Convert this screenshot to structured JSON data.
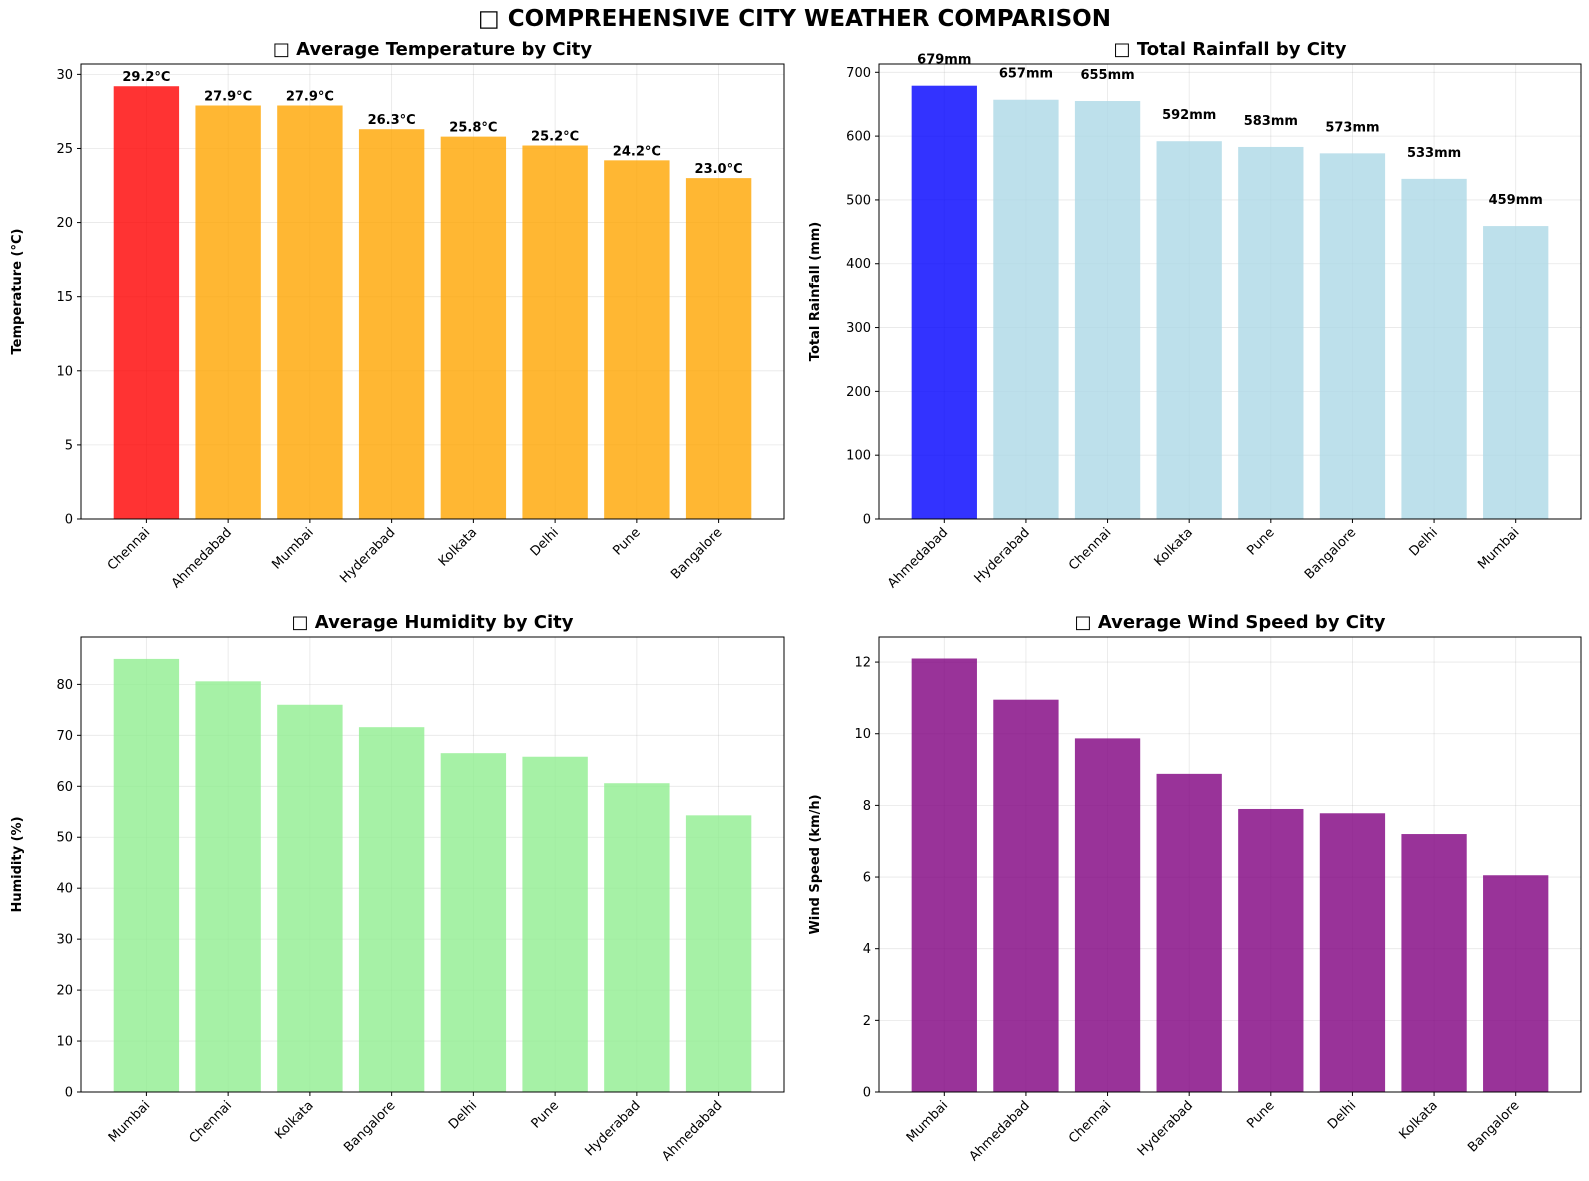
{
  "figure": {
    "title": "□ COMPREHENSIVE CITY WEATHER COMPARISON"
  },
  "chart_data": [
    {
      "type": "bar",
      "title": "□ Average Temperature by City",
      "xlabel": "",
      "ylabel": "Temperature (°C)",
      "categories": [
        "Chennai",
        "Ahmedabad",
        "Mumbai",
        "Hyderabad",
        "Kolkata",
        "Delhi",
        "Pune",
        "Bangalore"
      ],
      "values": [
        29.2,
        27.9,
        27.9,
        26.3,
        25.8,
        25.2,
        24.2,
        23.0
      ],
      "data_labels": [
        "29.2°C",
        "27.9°C",
        "27.9°C",
        "26.3°C",
        "25.8°C",
        "25.2°C",
        "24.2°C",
        "23.0°C"
      ],
      "colors": [
        "#ff0000",
        "#ffa500",
        "#ffa500",
        "#ffa500",
        "#ffa500",
        "#ffa500",
        "#ffa500",
        "#ffa500"
      ],
      "ylim": [
        0,
        30.7
      ],
      "yticks": [
        0,
        5,
        10,
        15,
        20,
        25,
        30
      ],
      "grid": true,
      "legend": "none"
    },
    {
      "type": "bar",
      "title": "□ Total Rainfall by City",
      "xlabel": "",
      "ylabel": "Total Rainfall (mm)",
      "categories": [
        "Ahmedabad",
        "Hyderabad",
        "Chennai",
        "Kolkata",
        "Pune",
        "Bangalore",
        "Delhi",
        "Mumbai"
      ],
      "values": [
        679,
        657,
        655,
        592,
        583,
        573,
        533,
        459
      ],
      "data_labels": [
        "679mm",
        "657mm",
        "655mm",
        "592mm",
        "583mm",
        "573mm",
        "533mm",
        "459mm"
      ],
      "colors": [
        "#0000ff",
        "#add8e6",
        "#add8e6",
        "#add8e6",
        "#add8e6",
        "#add8e6",
        "#add8e6",
        "#add8e6"
      ],
      "ylim": [
        0,
        713
      ],
      "yticks": [
        0,
        100,
        200,
        300,
        400,
        500,
        600,
        700
      ],
      "grid": true,
      "legend": "none"
    },
    {
      "type": "bar",
      "title": "□ Average Humidity by City",
      "xlabel": "",
      "ylabel": "Humidity (%)",
      "categories": [
        "Mumbai",
        "Chennai",
        "Kolkata",
        "Bangalore",
        "Delhi",
        "Pune",
        "Hyderabad",
        "Ahmedabad"
      ],
      "values": [
        85.0,
        80.6,
        76.0,
        71.6,
        66.5,
        65.8,
        60.6,
        54.3
      ],
      "colors": [
        "#90ee90",
        "#90ee90",
        "#90ee90",
        "#90ee90",
        "#90ee90",
        "#90ee90",
        "#90ee90",
        "#90ee90"
      ],
      "ylim": [
        0,
        89.3
      ],
      "yticks": [
        0,
        10,
        20,
        30,
        40,
        50,
        60,
        70,
        80
      ],
      "grid": true,
      "legend": "none"
    },
    {
      "type": "bar",
      "title": "□ Average Wind Speed by City",
      "xlabel": "",
      "ylabel": "Wind Speed (km/h)",
      "categories": [
        "Mumbai",
        "Ahmedabad",
        "Chennai",
        "Hyderabad",
        "Pune",
        "Delhi",
        "Kolkata",
        "Bangalore"
      ],
      "values": [
        12.1,
        10.95,
        9.87,
        8.88,
        7.9,
        7.78,
        7.2,
        6.05
      ],
      "colors": [
        "#800080",
        "#800080",
        "#800080",
        "#800080",
        "#800080",
        "#800080",
        "#800080",
        "#800080"
      ],
      "ylim": [
        0,
        12.7
      ],
      "yticks": [
        0,
        2,
        4,
        6,
        8,
        10,
        12
      ],
      "grid": true,
      "legend": "none"
    }
  ]
}
